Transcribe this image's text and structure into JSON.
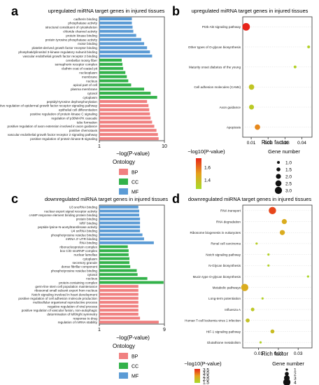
{
  "panels": {
    "a": "a",
    "b": "b",
    "c": "c",
    "d": "d"
  },
  "ontology": {
    "title": "Ontology",
    "labels": [
      "BP",
      "CC",
      "MF"
    ]
  },
  "colors": {
    "BP": "#f08080",
    "CC": "#33b24a",
    "MF": "#5b9bd5",
    "grid": "#dddddd",
    "axis": "#333333",
    "rich_high": "#e8241a",
    "rich_mid": "#e6a11c",
    "rich_low": "#a6dc2a"
  },
  "chart_data": [
    {
      "type": "bar",
      "orientation": "horizontal",
      "title": "upregulated miRNA target genes in injured tissues",
      "xlabel": "−log(P-value)",
      "xlim": [
        1,
        10
      ],
      "xticks": [
        1,
        10
      ],
      "categories": [
        "cadherin binding",
        "phosphatase activity",
        "structural constituent of cytoskeleton",
        "chloride channel activity",
        "protein kinase binding",
        "protein tyrosine phosphatase activity",
        "motor binding",
        "platelet-derived growth factor receptor binding",
        "phosphatidylinositol 3-kinase regulatory subunit binding",
        "vascular endothelial growth factor receptor 2 binding",
        "cerebellar mossy fiber",
        "semaphorin receptor complex",
        "clathrin coat of coated pit",
        "nucleoplasm",
        "membrane",
        "nucleus",
        "apical part of cell",
        "plasma membrane",
        "cytosol",
        "cytoplasm",
        "peptidyl-tyrosine dephosphorylation",
        "negative regulation of epidermal growth factor receptor signaling pathway",
        "epithelial cell differentiation",
        "positive regulation of protein kinase C signaling",
        "regulation of p38MAPK cascade",
        "tube formation",
        "positive regulation of axon extension involved in axon guidance",
        "positive chemotaxis",
        "vascular endothelial growth factor receptor 2 signaling pathway",
        "positive regulation of protein kinase B signaling"
      ],
      "ontology": [
        "MF",
        "MF",
        "MF",
        "MF",
        "MF",
        "MF",
        "MF",
        "MF",
        "MF",
        "MF",
        "CC",
        "CC",
        "CC",
        "CC",
        "CC",
        "CC",
        "CC",
        "CC",
        "CC",
        "CC",
        "BP",
        "BP",
        "BP",
        "BP",
        "BP",
        "BP",
        "BP",
        "BP",
        "BP",
        "BP"
      ],
      "values": [
        5.5,
        5.5,
        5.6,
        5.7,
        6.1,
        6.8,
        7.2,
        7.6,
        8.0,
        8.3,
        4.1,
        4.2,
        4.3,
        4.6,
        4.8,
        5.0,
        5.4,
        7.2,
        8.1,
        9.0,
        7.6,
        7.8,
        7.9,
        8.0,
        8.1,
        8.3,
        8.6,
        8.9,
        9.1,
        9.2
      ]
    },
    {
      "type": "scatter",
      "title": "upregulated miRNA target genes in injured tissues",
      "xlabel": "Rich factor",
      "xlim": [
        0.005,
        0.046
      ],
      "xticks": [
        0.01,
        0.02,
        0.03,
        0.04
      ],
      "xtick_labels": [
        "0.01",
        "0.02",
        "0.03",
        "0.04"
      ],
      "categories": [
        "PI3k-Akt signaling pathway",
        "Other types of O-glycan biosynthesis",
        "Maturity onset diabetes of the young",
        "Cell adhesion molecules (CAMs)",
        "Axon guidance",
        "Apoptosis"
      ],
      "x": [
        0.007,
        0.044,
        0.036,
        0.0102,
        0.0102,
        0.0137
      ],
      "logp": [
        1.75,
        1.3,
        1.3,
        1.35,
        1.33,
        1.55
      ],
      "gene_number": [
        3.2,
        1.0,
        1.0,
        2.2,
        2.0,
        2.2
      ],
      "color_legend": {
        "title": "−log10(P-value)",
        "ticks": [
          1.6,
          1.4
        ],
        "tick_labels": [
          "1.6",
          "1.4"
        ],
        "range": [
          1.25,
          1.75
        ]
      },
      "size_legend": {
        "title": "Gene number",
        "values": [
          1.0,
          1.5,
          2.0,
          2.5,
          3.0
        ],
        "labels": [
          "1.0",
          "1.5",
          "2.0",
          "2.5",
          "3.0"
        ]
      }
    },
    {
      "type": "bar",
      "orientation": "horizontal",
      "title": "downregulated miRNA target genes in injured tissues",
      "xlabel": "−log(P-value)",
      "xlim": [
        1,
        9
      ],
      "xticks": [
        1,
        9
      ],
      "categories": [
        "U3 snoRNA binding",
        "nuclear export signal receptor activity",
        "cAMP response element binding protein binding",
        "protein binding",
        "NRF binding",
        "peptide-lysine-N-acetyltransferase activity",
        "U4 snRNA binding",
        "phosphotyrosine residue binding",
        "mRNA 3'-UTR binding",
        "RNA binding",
        "ribonucleoprotein complex",
        "box C/D snoRNP complex",
        "nuclear lamellae",
        "cytoplasm",
        "secretory granule",
        "dense fibrillar component",
        "phosphotyrosine residue binding",
        "cytosol",
        "nucleus",
        "protein-containing complex",
        "germ-line stem cell population maintenance",
        "ribosomal small subunit export from nucleus",
        "Notch signaling involved in heart development",
        "positive regulation of cell adhesion molecule production",
        "multicellular organismal reproductive process",
        "negative regulation of viral process",
        "positive regulation of vascular fusion, non-autophagic",
        "determination of left/right symmetry",
        "response to drug",
        "regulation of mRNA stability"
      ],
      "ontology": [
        "MF",
        "MF",
        "MF",
        "MF",
        "MF",
        "MF",
        "MF",
        "MF",
        "MF",
        "MF",
        "CC",
        "CC",
        "CC",
        "CC",
        "CC",
        "CC",
        "CC",
        "CC",
        "CC",
        "CC",
        "BP",
        "BP",
        "BP",
        "BP",
        "BP",
        "BP",
        "BP",
        "BP",
        "BP",
        "BP"
      ],
      "values": [
        5.8,
        5.9,
        5.9,
        6.0,
        6.0,
        6.0,
        6.0,
        6.3,
        6.5,
        7.7,
        4.5,
        4.6,
        4.6,
        4.7,
        4.7,
        4.8,
        5.6,
        5.7,
        6.9,
        8.9,
        5.8,
        5.8,
        5.8,
        5.8,
        5.8,
        5.8,
        5.8,
        5.8,
        6.0,
        8.3
      ]
    },
    {
      "type": "scatter",
      "title": "downregulated miRNA target genes in injured tissues",
      "xlabel": "Rich factor",
      "xlim": [
        0.002,
        0.037
      ],
      "xticks": [
        0.01,
        0.02,
        0.03
      ],
      "xtick_labels": [
        "0.01",
        "0.02",
        "0.03"
      ],
      "categories": [
        "RNA transport",
        "RNA degradation",
        "Ribosome biogenesis in eukaryotes",
        "Renal cell carcinoma",
        "Notch signaling pathway",
        "N-Glycan biosynthesis",
        "Mucin type O-glycan biosynthesis",
        "Metabolic pathways",
        "Long-term potentiation",
        "Influenza A",
        "Human T-cell leukemia virus 1 infection",
        "HIF-1 signaling pathway",
        "Glutathione metabolism"
      ],
      "x": [
        0.017,
        0.023,
        0.022,
        0.009,
        0.015,
        0.015,
        0.035,
        0.003,
        0.012,
        0.007,
        0.0045,
        0.017,
        0.011
      ],
      "logp": [
        3.3,
        2.3,
        2.3,
        1.7,
        1.6,
        1.6,
        1.5,
        2.3,
        1.6,
        1.8,
        1.9,
        2.0,
        1.6
      ],
      "gene_number": [
        4.0,
        2.7,
        2.7,
        1.0,
        1.0,
        1.0,
        1.0,
        4.0,
        1.0,
        1.8,
        2.0,
        2.0,
        1.0
      ],
      "color_legend": {
        "title": "−log10(P-value)",
        "ticks": [
          3.5,
          3.0,
          2.5,
          2.0,
          1.5
        ],
        "tick_labels": [
          "3.5",
          "3.0",
          "2.5",
          "2.0",
          "1.5"
        ],
        "range": [
          1.4,
          3.6
        ]
      },
      "size_legend": {
        "title": "Gene number",
        "values": [
          1,
          2,
          3,
          4
        ],
        "labels": [
          "1",
          "2",
          "3",
          "4"
        ]
      }
    }
  ]
}
